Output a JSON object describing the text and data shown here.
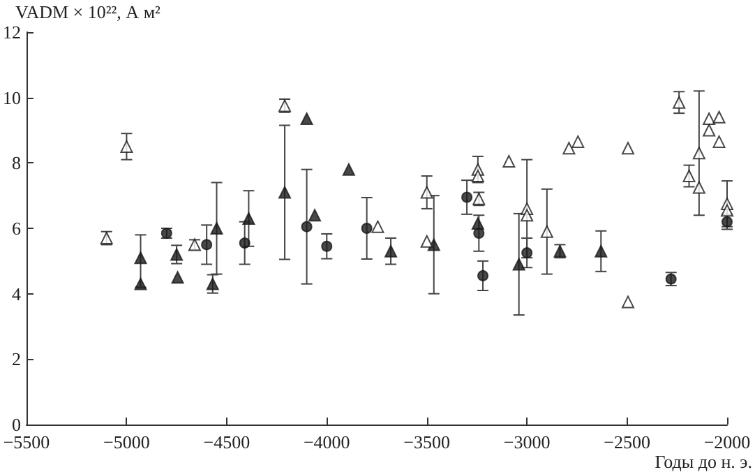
{
  "chart_data": {
    "type": "scatter",
    "xlabel": "Годы до н. э.",
    "ylabel": "VADM × 10²², А м²",
    "xlim": [
      -5500,
      -2000
    ],
    "xticks": [
      -5500,
      -5000,
      -4500,
      -4000,
      -3500,
      -3000,
      -2500,
      -2000
    ],
    "ylim": [
      0,
      12
    ],
    "yticks": [
      0,
      2,
      4,
      6,
      8,
      10,
      12
    ],
    "grid": false,
    "series": [
      {
        "marker": "triangle",
        "color": "#1a1a1a",
        "x": [
          -4930,
          -4930,
          -4750,
          -4745,
          -4550,
          -4570,
          -4390,
          -4210,
          -4100,
          -4060,
          -3890,
          -3680,
          -3465,
          -3245,
          -3040,
          -2835,
          -2630
        ],
        "values": [
          5.1,
          4.3,
          5.2,
          4.5,
          6.0,
          4.3,
          6.3,
          7.1,
          9.35,
          6.4,
          7.8,
          5.3,
          5.5,
          6.15,
          4.9,
          5.3,
          5.3
        ],
        "errors": [
          [
            4.2,
            5.8
          ],
          null,
          0.28,
          null,
          1.4,
          0.28,
          0.85,
          2.05,
          null,
          null,
          null,
          0.4,
          1.5,
          null,
          1.55,
          0.2,
          0.62
        ]
      },
      {
        "marker": "triangle",
        "color": "#ffffff",
        "x": [
          -5100,
          -5000,
          -4660,
          -4210,
          -3745,
          -3500,
          -3500,
          -3245,
          -3245,
          -3240,
          -3090,
          -3000,
          -3000,
          -2900,
          -2790,
          -2745,
          -2495,
          -2495,
          -2240,
          -2190,
          -2140,
          -2140,
          -2090,
          -2040,
          -2090,
          -2040,
          -2000,
          -2000
        ],
        "values": [
          5.7,
          8.5,
          5.5,
          9.75,
          6.05,
          7.1,
          5.6,
          7.8,
          7.6,
          6.9,
          8.05,
          6.6,
          6.4,
          5.9,
          8.45,
          8.65,
          8.45,
          3.75,
          9.85,
          7.6,
          8.3,
          7.25,
          9.35,
          9.4,
          9.0,
          8.65,
          6.75,
          6.55
        ],
        "errors": [
          0.2,
          0.4,
          0.15,
          0.2,
          null,
          0.5,
          null,
          0.4,
          null,
          0.2,
          null,
          1.5,
          null,
          1.3,
          null,
          null,
          null,
          null,
          0.33,
          0.33,
          1.9,
          null,
          null,
          null,
          null,
          null,
          0.7,
          null
        ]
      },
      {
        "marker": "circle",
        "color": "#1a1a1a",
        "x": [
          -4800,
          -4600,
          -4410,
          -4100,
          -4000,
          -3800,
          -3300,
          -3240,
          -3220,
          -3000,
          -2280,
          -2000
        ],
        "values": [
          5.85,
          5.5,
          5.55,
          6.05,
          5.45,
          6.0,
          6.95,
          5.85,
          4.55,
          5.25,
          4.45,
          6.2
        ],
        "errors": [
          0.15,
          0.6,
          0.65,
          1.75,
          0.38,
          0.94,
          0.52,
          0.55,
          0.45,
          0.45,
          0.2,
          0.23
        ]
      }
    ]
  }
}
